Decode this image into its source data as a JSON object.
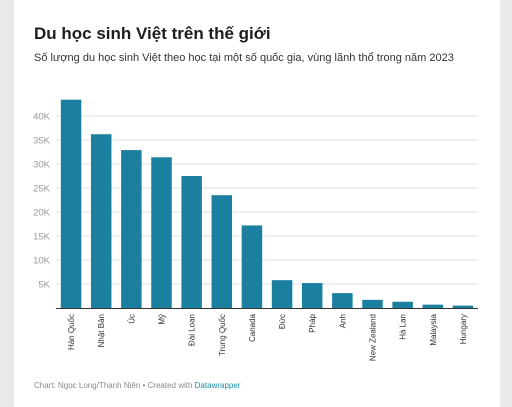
{
  "title": "Du học sinh Việt trên thế giới",
  "subtitle": "Số lượng du học sinh Việt theo học tại một số quốc gia, vùng lãnh thổ trong năm 2023",
  "footer": {
    "source": "Chart: Ngọc Long/Thanh Niên • Created with ",
    "tool": "Datawrapper"
  },
  "colors": {
    "bar": "#1b7fa0",
    "grid": "#e2e2e2",
    "axis": "#333333"
  },
  "chart_data": {
    "type": "bar",
    "title": "Du học sinh Việt trên thế giới",
    "subtitle": "Số lượng du học sinh Việt theo học tại một số quốc gia, vùng lãnh thổ trong năm 2023",
    "categories": [
      "Hàn Quốc",
      "Nhật Bản",
      "Úc",
      "Mỹ",
      "Đài Loan",
      "Trung Quốc",
      "Canada",
      "Đức",
      "Pháp",
      "Anh",
      "New Zealand",
      "Hà Lan",
      "Malaysia",
      "Hungary"
    ],
    "values": [
      43400,
      36200,
      32900,
      31400,
      27500,
      23500,
      17200,
      5800,
      5200,
      3100,
      1700,
      1300,
      700,
      500
    ],
    "ylim": [
      0,
      45000
    ],
    "yticks": [
      0,
      5000,
      10000,
      15000,
      20000,
      25000,
      30000,
      35000,
      40000
    ],
    "ytick_labels": [
      "",
      "5K",
      "10K",
      "15K",
      "20K",
      "25K",
      "30K",
      "35K",
      "40K"
    ],
    "grid": true,
    "xlabel": "",
    "ylabel": ""
  }
}
